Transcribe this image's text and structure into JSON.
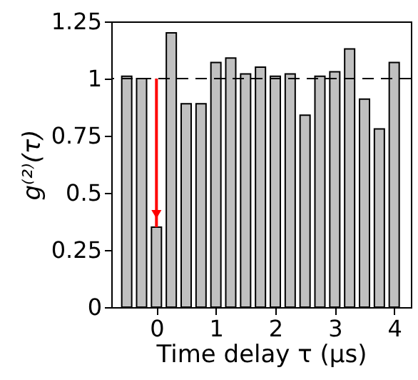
{
  "chart_data": {
    "type": "bar",
    "xlabel": "Time delay τ (μs)",
    "ylabel": "g⁽²⁾(τ)",
    "x": [
      -0.5,
      -0.25,
      0,
      0.25,
      0.5,
      0.75,
      1,
      1.25,
      1.5,
      1.75,
      2,
      2.25,
      2.5,
      2.75,
      3,
      3.25,
      3.5,
      3.75,
      4
    ],
    "series": [
      {
        "color": "#c0c0c0",
        "values": [
          1.01,
          1.0,
          0.35,
          1.2,
          0.89,
          0.89,
          1.07,
          1.09,
          1.02,
          1.05,
          1.01,
          1.02,
          0.84,
          1.01,
          1.03,
          1.13,
          0.91,
          0.78,
          1.07
        ]
      }
    ],
    "xlim": [
      -0.76,
      4.28
    ],
    "xticks": [
      0,
      1,
      2,
      3,
      4
    ],
    "ylim": [
      0,
      1.25
    ],
    "yticks": [
      0,
      0.25,
      0.5,
      0.75,
      1,
      1.25
    ],
    "ref_lines": [
      {
        "axis": "y",
        "value": 1,
        "line_style": "dashed",
        "color": "#000000"
      }
    ],
    "grid": false
  }
}
